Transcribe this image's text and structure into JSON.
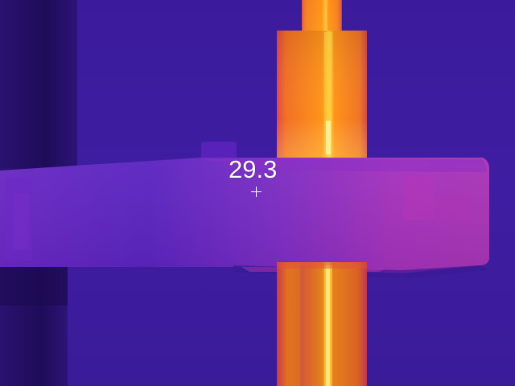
{
  "measurement": {
    "spot_temperature": "29.3"
  },
  "palette": {
    "background": "#3a1a9a",
    "cool": "#4a20b0",
    "warm": "#b028b8",
    "hot": "#ff8a10",
    "hottest": "#fff070"
  }
}
